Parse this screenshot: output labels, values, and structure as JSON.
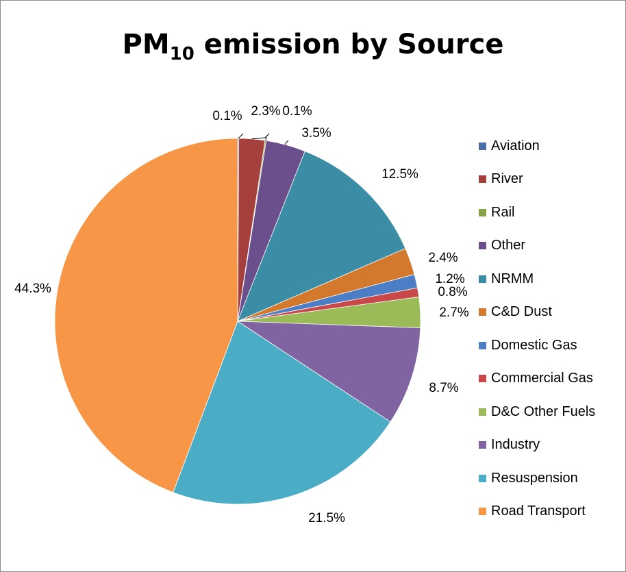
{
  "chart_data": {
    "type": "pie",
    "title": "PM",
    "title_subscript": "10",
    "title_suffix": " emission by Source",
    "legend_position": "right",
    "start_angle_deg": 0,
    "direction": "clockwise",
    "slices": [
      {
        "name": "Aviation",
        "value": 0.1,
        "label": "0.1%",
        "color": "#4a6fa5"
      },
      {
        "name": "River",
        "value": 2.3,
        "label": "2.3%",
        "color": "#a5403d"
      },
      {
        "name": "Rail",
        "value": 0.1,
        "label": "0.1%",
        "color": "#86a447"
      },
      {
        "name": "Other",
        "value": 3.5,
        "label": "3.5%",
        "color": "#6b4f8c"
      },
      {
        "name": "NRMM",
        "value": 12.5,
        "label": "12.5%",
        "color": "#3a8da4"
      },
      {
        "name": "C&D Dust",
        "value": 2.4,
        "label": "2.4%",
        "color": "#d3792e"
      },
      {
        "name": "Domestic Gas",
        "value": 1.2,
        "label": "1.2%",
        "color": "#4b7ec4"
      },
      {
        "name": "Commercial Gas",
        "value": 0.8,
        "label": "0.8%",
        "color": "#c9494a"
      },
      {
        "name": "D&C Other Fuels",
        "value": 2.7,
        "label": "2.7%",
        "color": "#9bbb59"
      },
      {
        "name": "Industry",
        "value": 8.7,
        "label": "8.7%",
        "color": "#8064a2"
      },
      {
        "name": "Resuspension",
        "value": 21.5,
        "label": "21.5%",
        "color": "#4bacc6"
      },
      {
        "name": "Road Transport",
        "value": 44.3,
        "label": "44.3%",
        "color": "#f79646"
      }
    ]
  }
}
